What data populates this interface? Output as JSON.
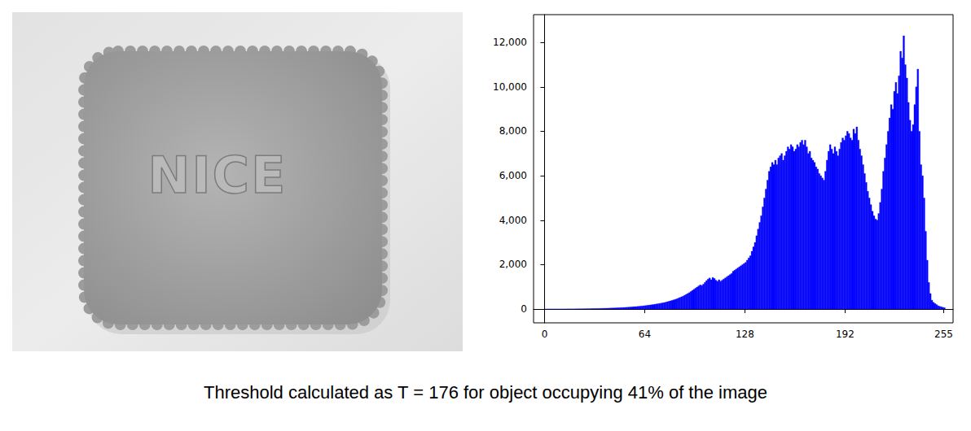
{
  "chart_data": {
    "type": "histogram",
    "bins": [
      0,
      1,
      2,
      3,
      4,
      5,
      6,
      7,
      8,
      9,
      10,
      11,
      12,
      13,
      14,
      15,
      16,
      17,
      18,
      19,
      20,
      21,
      22,
      23,
      24,
      25,
      26,
      27,
      28,
      29,
      30,
      31,
      32,
      33,
      34,
      35,
      36,
      37,
      38,
      39,
      40,
      41,
      42,
      43,
      44,
      45,
      46,
      47,
      48,
      49,
      50,
      51,
      52,
      53,
      54,
      55,
      56,
      57,
      58,
      59,
      60,
      61,
      62,
      63,
      64,
      65,
      66,
      67,
      68,
      69,
      70,
      71,
      72,
      73,
      74,
      75,
      76,
      77,
      78,
      79,
      80,
      81,
      82,
      83,
      84,
      85,
      86,
      87,
      88,
      89,
      90,
      91,
      92,
      93,
      94,
      95,
      96,
      97,
      98,
      99,
      100,
      101,
      102,
      103,
      104,
      105,
      106,
      107,
      108,
      109,
      110,
      111,
      112,
      113,
      114,
      115,
      116,
      117,
      118,
      119,
      120,
      121,
      122,
      123,
      124,
      125,
      126,
      127,
      128,
      129,
      130,
      131,
      132,
      133,
      134,
      135,
      136,
      137,
      138,
      139,
      140,
      141,
      142,
      143,
      144,
      145,
      146,
      147,
      148,
      149,
      150,
      151,
      152,
      153,
      154,
      155,
      156,
      157,
      158,
      159,
      160,
      161,
      162,
      163,
      164,
      165,
      166,
      167,
      168,
      169,
      170,
      171,
      172,
      173,
      174,
      175,
      176,
      177,
      178,
      179,
      180,
      181,
      182,
      183,
      184,
      185,
      186,
      187,
      188,
      189,
      190,
      191,
      192,
      193,
      194,
      195,
      196,
      197,
      198,
      199,
      200,
      201,
      202,
      203,
      204,
      205,
      206,
      207,
      208,
      209,
      210,
      211,
      212,
      213,
      214,
      215,
      216,
      217,
      218,
      219,
      220,
      221,
      222,
      223,
      224,
      225,
      226,
      227,
      228,
      229,
      230,
      231,
      232,
      233,
      234,
      235,
      236,
      237,
      238,
      239,
      240,
      241,
      242,
      243,
      244,
      245,
      246,
      247,
      248,
      249,
      250,
      251,
      252,
      253,
      254,
      255,
      256
    ],
    "values": [
      0,
      0,
      1,
      0,
      1,
      1,
      2,
      1,
      2,
      3,
      2,
      3,
      4,
      3,
      5,
      4,
      5,
      6,
      6,
      7,
      8,
      8,
      10,
      9,
      11,
      12,
      13,
      14,
      15,
      17,
      18,
      20,
      22,
      24,
      25,
      27,
      30,
      32,
      35,
      37,
      40,
      42,
      45,
      48,
      50,
      54,
      57,
      60,
      64,
      68,
      72,
      76,
      80,
      85,
      90,
      95,
      100,
      106,
      112,
      118,
      125,
      132,
      140,
      148,
      156,
      165,
      175,
      185,
      195,
      205,
      215,
      228,
      240,
      252,
      265,
      280,
      295,
      310,
      330,
      350,
      370,
      390,
      410,
      435,
      460,
      490,
      520,
      550,
      580,
      620,
      660,
      700,
      740,
      790,
      840,
      890,
      940,
      990,
      1040,
      1090,
      1060,
      1120,
      1200,
      1280,
      1350,
      1400,
      1320,
      1420,
      1380,
      1300,
      1250,
      1320,
      1250,
      1300,
      1350,
      1400,
      1450,
      1500,
      1550,
      1600,
      1700,
      1750,
      1800,
      1850,
      1900,
      1950,
      2000,
      2050,
      2100,
      2200,
      2300,
      2400,
      2600,
      2800,
      3000,
      3300,
      3600,
      3900,
      4200,
      4600,
      5000,
      5400,
      5800,
      6200,
      6400,
      6600,
      6500,
      6700,
      6500,
      6800,
      6900,
      7000,
      6700,
      6900,
      7100,
      7300,
      7200,
      7400,
      7300,
      7100,
      7200,
      7400,
      7300,
      7500,
      7600,
      7400,
      7600,
      7300,
      7000,
      7100,
      6800,
      6700,
      6600,
      6400,
      6300,
      6100,
      6000,
      5900,
      5800,
      6200,
      6700,
      7100,
      7400,
      7200,
      7000,
      7300,
      7100,
      6900,
      7200,
      7500,
      7700,
      7600,
      7800,
      8000,
      7900,
      7700,
      7600,
      8100,
      7900,
      8200,
      7600,
      7200,
      6900,
      6500,
      6100,
      5700,
      5300,
      5000,
      4700,
      4400,
      4200,
      4050,
      4000,
      4300,
      4800,
      5400,
      6200,
      6800,
      7400,
      8000,
      8600,
      9200,
      9000,
      9800,
      10200,
      9700,
      10500,
      11600,
      11300,
      12300,
      11000,
      10400,
      9300,
      8500,
      8000,
      8300,
      9200,
      10000,
      10800,
      8000,
      6500,
      6000,
      5000,
      3500,
      2200,
      1200,
      700,
      400,
      300,
      250,
      200,
      150,
      120,
      100,
      80,
      60
    ],
    "color": "#0000ff",
    "xlim": [
      -7,
      261
    ],
    "xticks": [
      0,
      64,
      128,
      192,
      255
    ],
    "ylim": [
      -620,
      13250
    ],
    "yticks": [
      0,
      2000,
      4000,
      6000,
      8000,
      10000,
      12000
    ],
    "grid": false
  },
  "photo": {
    "text": "NICE"
  },
  "caption": "Threshold calculated as T = 176 for object occupying 41% of the image"
}
